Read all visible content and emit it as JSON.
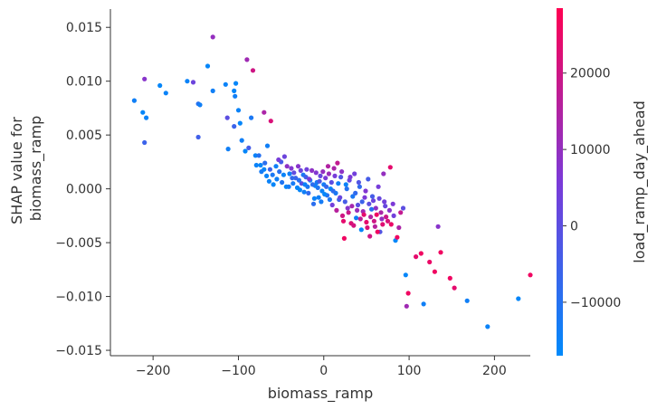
{
  "chart_data": {
    "type": "scatter",
    "title": "",
    "xlabel": "biomass_ramp",
    "ylabel_lines": [
      "SHAP value for",
      "biomass_ramp"
    ],
    "xlim": [
      -250,
      242
    ],
    "ylim": [
      -0.0155,
      0.0167
    ],
    "xticks": [
      {
        "value": -200,
        "label": "−200"
      },
      {
        "value": -100,
        "label": "−100"
      },
      {
        "value": 0,
        "label": "0"
      },
      {
        "value": 100,
        "label": "100"
      },
      {
        "value": 200,
        "label": "200"
      }
    ],
    "yticks": [
      {
        "value": 0.015,
        "label": "0.015"
      },
      {
        "value": 0.01,
        "label": "0.010"
      },
      {
        "value": 0.005,
        "label": "0.005"
      },
      {
        "value": 0.0,
        "label": "0.000"
      },
      {
        "value": -0.005,
        "label": "−0.005"
      },
      {
        "value": -0.01,
        "label": "−0.010"
      },
      {
        "value": -0.015,
        "label": "−0.015"
      }
    ],
    "grid": false,
    "colorbar": {
      "label": "load_ramp_day_ahead",
      "range": [
        -17000,
        28500
      ],
      "ticks": [
        {
          "value": 20000,
          "label": "20000"
        },
        {
          "value": 10000,
          "label": "10000"
        },
        {
          "value": 0,
          "label": "0"
        },
        {
          "value": -10000,
          "label": "−10000"
        }
      ],
      "colormap": [
        "#008afb",
        "#7b3ad8",
        "#ff0052"
      ]
    },
    "points": [
      [
        -222,
        0.0082,
        -14000
      ],
      [
        -210,
        0.0102,
        8000
      ],
      [
        -212,
        0.0071,
        -16000
      ],
      [
        -208,
        0.0066,
        -15000
      ],
      [
        -210,
        0.0043,
        -6000
      ],
      [
        -192,
        0.0096,
        -16000
      ],
      [
        -185,
        0.0089,
        -15000
      ],
      [
        -160,
        0.01,
        -15000
      ],
      [
        -153,
        0.0099,
        3000
      ],
      [
        -147,
        0.0079,
        -10000
      ],
      [
        -145,
        0.0078,
        -14000
      ],
      [
        -147,
        0.0048,
        -5000
      ],
      [
        -136,
        0.0114,
        -16000
      ],
      [
        -130,
        0.0141,
        10000
      ],
      [
        -130,
        0.0091,
        -14000
      ],
      [
        -115,
        0.0097,
        -15000
      ],
      [
        -113,
        0.0066,
        0
      ],
      [
        -112,
        0.0037,
        -14000
      ],
      [
        -105,
        0.0091,
        -16000
      ],
      [
        -103,
        0.0098,
        -16000
      ],
      [
        -104,
        0.0086,
        -14000
      ],
      [
        -105,
        0.0058,
        -6000
      ],
      [
        -100,
        0.0073,
        -15000
      ],
      [
        -98,
        0.0061,
        -16000
      ],
      [
        -96,
        0.0045,
        -14000
      ],
      [
        -90,
        0.012,
        12000
      ],
      [
        -83,
        0.011,
        20000
      ],
      [
        -92,
        0.0035,
        -16000
      ],
      [
        -88,
        0.0038,
        -4000
      ],
      [
        -85,
        0.0066,
        -12000
      ],
      [
        -80,
        0.0031,
        -15000
      ],
      [
        -76,
        0.0031,
        -10000
      ],
      [
        -74,
        0.0022,
        -16000
      ],
      [
        -70,
        0.0071,
        14000
      ],
      [
        -62,
        0.0063,
        22000
      ],
      [
        -66,
        0.004,
        -14000
      ],
      [
        -70,
        0.0018,
        -16000
      ],
      [
        -64,
        0.0007,
        -15000
      ],
      [
        -60,
        0.0013,
        -12000
      ],
      [
        -56,
        0.0021,
        -14000
      ],
      [
        -52,
        0.0016,
        -10000
      ],
      [
        -50,
        0.0025,
        -4000
      ],
      [
        -46,
        0.003,
        3000
      ],
      [
        -44,
        0.0002,
        -16000
      ],
      [
        -40,
        0.0014,
        -14000
      ],
      [
        -38,
        0.0019,
        7000
      ],
      [
        -36,
        0.0005,
        -13000
      ],
      [
        -33,
        0.001,
        -6000
      ],
      [
        -30,
        0.0021,
        8000
      ],
      [
        -28,
        -0.0001,
        -16000
      ],
      [
        -26,
        0.0005,
        0
      ],
      [
        -24,
        0.0013,
        -12000
      ],
      [
        -22,
        0.0004,
        -15000
      ],
      [
        -20,
        0.0018,
        4000
      ],
      [
        -18,
        -0.0004,
        -8000
      ],
      [
        -16,
        0.0008,
        -14000
      ],
      [
        -14,
        0.0017,
        9000
      ],
      [
        -12,
        -0.0014,
        -9000
      ],
      [
        -10,
        0.0003,
        -16000
      ],
      [
        -8,
        0.0006,
        -12000
      ],
      [
        -6,
        -0.0008,
        -14000
      ],
      [
        -4,
        0.0012,
        2000
      ],
      [
        -2,
        -0.0002,
        -15000
      ],
      [
        0,
        0.0004,
        -13000
      ],
      [
        2,
        0.001,
        6000
      ],
      [
        4,
        -0.0006,
        -10000
      ],
      [
        6,
        0.0014,
        11000
      ],
      [
        8,
        0.0,
        -16000
      ],
      [
        10,
        -0.0015,
        4000
      ],
      [
        12,
        0.0019,
        14000
      ],
      [
        14,
        -0.0004,
        -12000
      ],
      [
        16,
        0.0024,
        18000
      ],
      [
        18,
        -0.001,
        -6000
      ],
      [
        20,
        0.0011,
        -2000
      ],
      [
        22,
        -0.0025,
        20000
      ],
      [
        24,
        -0.0046,
        26000
      ],
      [
        26,
        0.0004,
        -15000
      ],
      [
        28,
        -0.0018,
        8000
      ],
      [
        30,
        0.0008,
        2000
      ],
      [
        32,
        -0.0032,
        22000
      ],
      [
        34,
        -0.0007,
        -12000
      ],
      [
        36,
        0.0014,
        4000
      ],
      [
        38,
        -0.0027,
        -14000
      ],
      [
        40,
        -0.0015,
        0
      ],
      [
        42,
        0.0002,
        -8000
      ],
      [
        44,
        -0.0038,
        -16000
      ],
      [
        46,
        -0.0021,
        12000
      ],
      [
        48,
        -0.0008,
        6000
      ],
      [
        50,
        -0.0031,
        24000
      ],
      [
        52,
        0.0009,
        -4000
      ],
      [
        54,
        -0.0044,
        20000
      ],
      [
        56,
        -0.0019,
        -10000
      ],
      [
        58,
        -0.0011,
        3000
      ],
      [
        60,
        -0.0035,
        16000
      ],
      [
        62,
        -0.0024,
        26000
      ],
      [
        64,
        0.0002,
        5000
      ],
      [
        66,
        -0.004,
        -2000
      ],
      [
        68,
        -0.0028,
        10000
      ],
      [
        70,
        0.0014,
        10000
      ],
      [
        72,
        -0.0016,
        2000
      ],
      [
        75,
        -0.003,
        22000
      ],
      [
        78,
        0.002,
        24000
      ],
      [
        82,
        -0.0025,
        4000
      ],
      [
        84,
        -0.0048,
        -16000
      ],
      [
        86,
        -0.0045,
        26000
      ],
      [
        88,
        -0.0036,
        14000
      ],
      [
        90,
        -0.0022,
        18000
      ],
      [
        93,
        -0.0018,
        0
      ],
      [
        96,
        -0.008,
        -16000
      ],
      [
        97,
        -0.0109,
        12000
      ],
      [
        99,
        -0.0097,
        26000
      ],
      [
        108,
        -0.0063,
        24000
      ],
      [
        114,
        -0.006,
        26000
      ],
      [
        117,
        -0.0107,
        -14000
      ],
      [
        124,
        -0.0068,
        25000
      ],
      [
        130,
        -0.0077,
        26000
      ],
      [
        134,
        -0.0035,
        8000
      ],
      [
        137,
        -0.0059,
        26000
      ],
      [
        148,
        -0.0083,
        26000
      ],
      [
        153,
        -0.0092,
        24000
      ],
      [
        168,
        -0.0104,
        -14000
      ],
      [
        192,
        -0.0128,
        -15000
      ],
      [
        228,
        -0.0102,
        -16000
      ],
      [
        242,
        -0.008,
        26000
      ],
      [
        -79,
        0.0022,
        -15000
      ],
      [
        -73,
        0.0016,
        -13000
      ],
      [
        -69,
        0.0024,
        -9000
      ],
      [
        -67,
        0.0012,
        -15000
      ],
      [
        -63,
        0.0018,
        -6000
      ],
      [
        -59,
        0.0004,
        -16000
      ],
      [
        -55,
        0.0009,
        -14000
      ],
      [
        -53,
        0.0027,
        5000
      ],
      [
        -49,
        0.0006,
        -11000
      ],
      [
        -47,
        0.0013,
        -15000
      ],
      [
        -43,
        0.0021,
        9000
      ],
      [
        -41,
        0.0002,
        -13000
      ],
      [
        -37,
        0.001,
        -8000
      ],
      [
        -35,
        0.0015,
        1000
      ],
      [
        -31,
        0.0001,
        -16000
      ],
      [
        -29,
        0.0008,
        -10000
      ],
      [
        -27,
        0.0017,
        3000
      ],
      [
        -23,
        -0.0003,
        -14000
      ],
      [
        -21,
        0.0011,
        -5000
      ],
      [
        -19,
        0.0002,
        -12000
      ],
      [
        -17,
        0.0009,
        6000
      ],
      [
        -13,
        0.0004,
        -9000
      ],
      [
        -11,
        -0.0009,
        -15000
      ],
      [
        -9,
        0.0015,
        7000
      ],
      [
        -7,
        0.0001,
        -11000
      ],
      [
        -5,
        0.0007,
        -3000
      ],
      [
        -3,
        -0.0012,
        -13000
      ],
      [
        -1,
        0.0016,
        10000
      ],
      [
        1,
        -0.0005,
        -16000
      ],
      [
        3,
        0.0002,
        -7000
      ],
      [
        5,
        0.0021,
        15000
      ],
      [
        7,
        -0.001,
        -12000
      ],
      [
        9,
        0.0006,
        0
      ],
      [
        11,
        -0.0002,
        -9000
      ],
      [
        13,
        0.0012,
        5000
      ],
      [
        15,
        -0.002,
        16000
      ],
      [
        17,
        0.0005,
        -14000
      ],
      [
        19,
        -0.0008,
        2000
      ],
      [
        21,
        0.0016,
        9000
      ],
      [
        23,
        -0.003,
        24000
      ],
      [
        25,
        -0.0012,
        -4000
      ],
      [
        27,
        0.0,
        -10000
      ],
      [
        29,
        -0.0022,
        19000
      ],
      [
        31,
        0.0011,
        6000
      ],
      [
        33,
        -0.0016,
        13000
      ],
      [
        35,
        -0.0034,
        21000
      ],
      [
        37,
        -0.0004,
        -8000
      ],
      [
        39,
        -0.002,
        11000
      ],
      [
        41,
        0.0006,
        -2000
      ],
      [
        43,
        -0.0028,
        17000
      ],
      [
        45,
        -0.0012,
        -6000
      ],
      [
        47,
        -0.0024,
        24000
      ],
      [
        49,
        -0.0002,
        7000
      ],
      [
        51,
        -0.0036,
        22000
      ],
      [
        53,
        -0.0014,
        0
      ],
      [
        55,
        -0.0026,
        15000
      ],
      [
        57,
        -0.0007,
        -4000
      ],
      [
        59,
        -0.003,
        20000
      ],
      [
        61,
        -0.0018,
        9000
      ],
      [
        63,
        -0.004,
        26000
      ],
      [
        65,
        -0.0009,
        2000
      ],
      [
        67,
        -0.0022,
        14000
      ],
      [
        69,
        -0.0033,
        23000
      ],
      [
        71,
        -0.0012,
        4000
      ],
      [
        73,
        -0.0026,
        19000
      ],
      [
        77,
        -0.002,
        8000
      ],
      [
        79,
        -0.0033,
        25000
      ],
      [
        81,
        -0.0014,
        6000
      ]
    ]
  }
}
